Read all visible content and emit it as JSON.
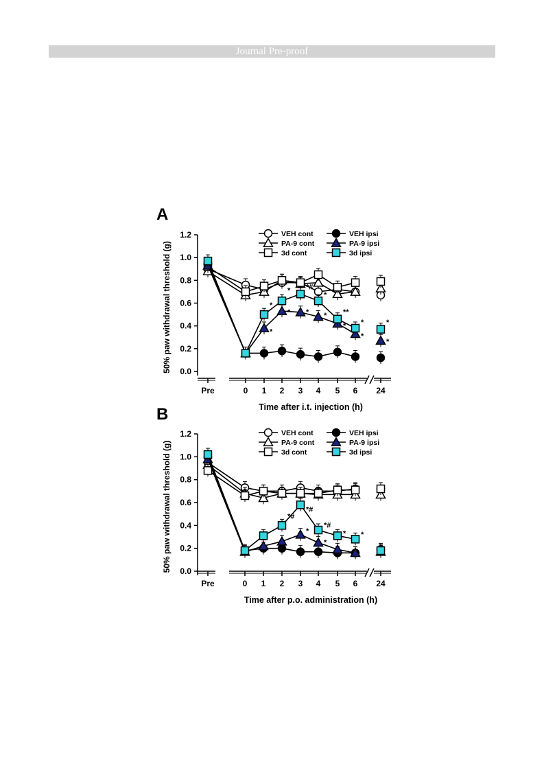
{
  "header": {
    "banner": "Journal Pre-proof"
  },
  "chart_data": [
    {
      "type": "line",
      "panel": "A",
      "xlabel": "Time after i.t. injection (h)",
      "ylabel": "50% paw withdrawal threshold (g)",
      "ylim": [
        0,
        1.2
      ],
      "yticks": [
        "0.0",
        "0.2",
        "0.4",
        "0.6",
        "0.8",
        "1.0",
        "1.2"
      ],
      "x_categories": [
        "Pre",
        "0",
        "1",
        "2",
        "3",
        "4",
        "5",
        "6",
        "24"
      ],
      "legend_position": "top-right",
      "series": [
        {
          "name": "VEH cont",
          "marker": "circle-open",
          "color": "#000000",
          "values": [
            0.9,
            0.76,
            0.72,
            0.78,
            0.78,
            0.7,
            0.72,
            0.7,
            0.67
          ]
        },
        {
          "name": "PA-9 cont",
          "marker": "triangle-open",
          "color": "#000000",
          "values": [
            0.88,
            0.67,
            0.7,
            0.8,
            0.77,
            0.78,
            0.68,
            0.7,
            0.73
          ]
        },
        {
          "name": "3d cont",
          "marker": "square-open",
          "color": "#000000",
          "values": [
            0.92,
            0.7,
            0.75,
            0.8,
            0.78,
            0.85,
            0.74,
            0.78,
            0.79
          ]
        },
        {
          "name": "VEH ipsi",
          "marker": "circle-filled",
          "color": "#000000",
          "values": [
            0.95,
            0.16,
            0.16,
            0.18,
            0.15,
            0.13,
            0.17,
            0.13,
            0.12
          ]
        },
        {
          "name": "PA-9 ipsi",
          "marker": "triangle-filled",
          "color": "#1a237e",
          "values": [
            0.93,
            0.16,
            0.38,
            0.53,
            0.52,
            0.48,
            0.42,
            0.33,
            0.27
          ]
        },
        {
          "name": "3d ipsi",
          "marker": "square-filled",
          "color": "#33d6e0",
          "values": [
            0.97,
            0.16,
            0.5,
            0.62,
            0.68,
            0.62,
            0.46,
            0.38,
            0.37
          ]
        }
      ],
      "annotations": [
        {
          "x": "1",
          "y": 0.56,
          "text": "*"
        },
        {
          "x": "1",
          "y": 0.33,
          "text": "*"
        },
        {
          "x": "2",
          "y": 0.69,
          "text": "*"
        },
        {
          "x": "2",
          "y": 0.5,
          "text": "*"
        },
        {
          "x": "3",
          "y": 0.72,
          "text": "*#"
        },
        {
          "x": "3",
          "y": 0.5,
          "text": "*"
        },
        {
          "x": "4",
          "y": 0.65,
          "text": "*"
        },
        {
          "x": "4",
          "y": 0.47,
          "text": "*"
        },
        {
          "x": "5",
          "y": 0.5,
          "text": "**"
        },
        {
          "x": "5",
          "y": 0.38,
          "text": "*"
        },
        {
          "x": "6",
          "y": 0.41,
          "text": "*"
        },
        {
          "x": "6",
          "y": 0.29,
          "text": "*"
        },
        {
          "x": "24",
          "y": 0.41,
          "text": "*"
        },
        {
          "x": "24",
          "y": 0.24,
          "text": "*"
        }
      ]
    },
    {
      "type": "line",
      "panel": "B",
      "xlabel": "Time after p.o. administration (h)",
      "ylabel": "50% paw withdrawal threshold (g)",
      "ylim": [
        0,
        1.2
      ],
      "yticks": [
        "0.0",
        "0.2",
        "0.4",
        "0.6",
        "0.8",
        "1.0",
        "1.2"
      ],
      "x_categories": [
        "Pre",
        "0",
        "1",
        "2",
        "3",
        "4",
        "5",
        "6",
        "24"
      ],
      "legend_position": "top-right",
      "series": [
        {
          "name": "VEH cont",
          "marker": "circle-open",
          "color": "#000000",
          "values": [
            0.95,
            0.73,
            0.7,
            0.7,
            0.73,
            0.7,
            0.7,
            0.72,
            0.72
          ]
        },
        {
          "name": "PA-9 cont",
          "marker": "triangle-open",
          "color": "#000000",
          "values": [
            0.93,
            0.68,
            0.64,
            0.68,
            0.68,
            0.67,
            0.67,
            0.67,
            0.67
          ]
        },
        {
          "name": "3d cont",
          "marker": "square-open",
          "color": "#000000",
          "values": [
            0.88,
            0.66,
            0.7,
            0.68,
            0.68,
            0.68,
            0.71,
            0.71,
            0.72
          ]
        },
        {
          "name": "VEH ipsi",
          "marker": "circle-filled",
          "color": "#000000",
          "values": [
            1.0,
            0.18,
            0.2,
            0.2,
            0.17,
            0.17,
            0.16,
            0.16,
            0.19
          ]
        },
        {
          "name": "PA-9 ipsi",
          "marker": "triangle-filled",
          "color": "#1a237e",
          "values": [
            0.98,
            0.17,
            0.22,
            0.26,
            0.32,
            0.25,
            0.19,
            0.16,
            0.17
          ]
        },
        {
          "name": "3d ipsi",
          "marker": "square-filled",
          "color": "#33d6e0",
          "values": [
            1.02,
            0.18,
            0.31,
            0.4,
            0.58,
            0.36,
            0.31,
            0.28,
            0.18
          ]
        }
      ],
      "annotations": [
        {
          "x": "2",
          "y": 0.46,
          "text": "*#"
        },
        {
          "x": "3",
          "y": 0.52,
          "text": "*#"
        },
        {
          "x": "3",
          "y": 0.33,
          "text": "*"
        },
        {
          "x": "4",
          "y": 0.38,
          "text": "*#"
        },
        {
          "x": "4",
          "y": 0.23,
          "text": "*"
        },
        {
          "x": "5",
          "y": 0.31,
          "text": "*"
        },
        {
          "x": "6",
          "y": 0.3,
          "text": "*"
        }
      ]
    }
  ]
}
